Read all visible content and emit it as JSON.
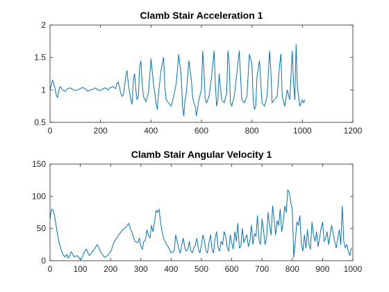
{
  "chart_data": [
    {
      "type": "line",
      "title": "Clamb Stair Acceleration 1",
      "xlabel": "",
      "ylabel": "",
      "xlim": [
        0,
        1200
      ],
      "ylim": [
        0.5,
        2
      ],
      "xticks": [
        0,
        200,
        400,
        600,
        800,
        1000,
        1200
      ],
      "yticks": [
        0.5,
        1,
        1.5,
        2
      ],
      "xtick_labels": [
        "0",
        "200",
        "400",
        "600",
        "800",
        "1000",
        "1200"
      ],
      "ytick_labels": [
        "0.5",
        "1",
        "1.5",
        "2"
      ],
      "grid": false,
      "color": "#0072BD",
      "series": [
        {
          "x": [
            0,
            5,
            10,
            15,
            20,
            25,
            30,
            35,
            40,
            50,
            60,
            70,
            80,
            90,
            100,
            110,
            120,
            130,
            140,
            150,
            160,
            170,
            180,
            190,
            200,
            210,
            220,
            230,
            240,
            250,
            260,
            265,
            270,
            275,
            280,
            285,
            290,
            295,
            300,
            305,
            310,
            320,
            325,
            330,
            335,
            340,
            345,
            350,
            355,
            360,
            365,
            370,
            380,
            390,
            395,
            400,
            410,
            420,
            425,
            430,
            440,
            450,
            455,
            460,
            470,
            480,
            490,
            500,
            510,
            520,
            525,
            530,
            535,
            540,
            550,
            560,
            565,
            570,
            575,
            580,
            590,
            600,
            605,
            610,
            615,
            620,
            630,
            640,
            650,
            655,
            660,
            665,
            670,
            680,
            690,
            700,
            705,
            710,
            715,
            720,
            730,
            740,
            750,
            755,
            760,
            770,
            780,
            790,
            800,
            805,
            810,
            815,
            820,
            830,
            840,
            850,
            860,
            870,
            875,
            880,
            890,
            900,
            910,
            915,
            920,
            930,
            940,
            950,
            960,
            965,
            970,
            975,
            980,
            990,
            1000,
            1005,
            1010
          ],
          "y": [
            1.0,
            1.08,
            1.15,
            1.1,
            1.02,
            0.92,
            0.88,
            1.0,
            1.05,
            1.0,
            0.98,
            1.02,
            1.03,
            1.01,
            0.99,
            1.0,
            1.02,
            1.04,
            1.01,
            0.98,
            1.0,
            1.01,
            1.03,
            1.0,
            0.99,
            1.02,
            1.03,
            1.0,
            1.04,
            1.05,
            1.02,
            1.1,
            1.12,
            1.05,
            0.95,
            0.9,
            0.92,
            1.05,
            1.2,
            1.3,
            1.1,
            0.85,
            0.78,
            1.15,
            1.25,
            1.0,
            0.85,
            0.9,
            1.35,
            1.45,
            1.1,
            0.9,
            0.82,
            0.95,
            1.2,
            1.48,
            1.1,
            0.8,
            0.7,
            0.95,
            1.3,
            1.5,
            1.05,
            0.85,
            0.8,
            0.75,
            0.9,
            1.1,
            1.55,
            1.2,
            0.75,
            0.6,
            0.85,
            0.95,
            1.45,
            1.15,
            0.9,
            0.8,
            0.75,
            0.6,
            0.85,
            1.0,
            1.6,
            1.3,
            0.85,
            0.8,
            0.9,
            1.2,
            1.6,
            1.1,
            0.75,
            0.85,
            1.25,
            0.85,
            0.8,
            0.95,
            1.6,
            1.4,
            0.8,
            0.75,
            0.9,
            1.25,
            1.6,
            1.2,
            0.85,
            0.8,
            0.9,
            1.55,
            1.4,
            0.85,
            0.7,
            0.75,
            1.2,
            1.45,
            0.8,
            0.75,
            0.9,
            1.6,
            1.3,
            0.8,
            0.85,
            0.9,
            1.4,
            1.55,
            0.9,
            0.75,
            1.0,
            0.85,
            1.6,
            1.1,
            0.85,
            1.7,
            1.05,
            0.75,
            0.85,
            0.8,
            0.85
          ]
        }
      ]
    },
    {
      "type": "line",
      "title": "Clamb Stair Angular Velocity 1",
      "xlabel": "",
      "ylabel": "",
      "xlim": [
        0,
        1000
      ],
      "ylim": [
        0,
        150
      ],
      "xticks": [
        0,
        100,
        200,
        300,
        400,
        500,
        600,
        700,
        800,
        900,
        1000
      ],
      "yticks": [
        0,
        50,
        100,
        150
      ],
      "xtick_labels": [
        "0",
        "100",
        "200",
        "300",
        "400",
        "500",
        "600",
        "700",
        "800",
        "900",
        "1000"
      ],
      "ytick_labels": [
        "0",
        "50",
        "100",
        "150"
      ],
      "grid": false,
      "color": "#0072BD",
      "series": [
        {
          "x": [
            0,
            3,
            6,
            10,
            15,
            20,
            25,
            30,
            35,
            40,
            45,
            50,
            55,
            60,
            65,
            70,
            75,
            80,
            90,
            100,
            105,
            110,
            115,
            120,
            125,
            130,
            140,
            150,
            155,
            160,
            165,
            170,
            180,
            190,
            200,
            205,
            210,
            220,
            230,
            240,
            250,
            255,
            260,
            265,
            270,
            280,
            290,
            295,
            300,
            305,
            310,
            315,
            320,
            325,
            330,
            335,
            340,
            345,
            350,
            355,
            360,
            365,
            370,
            375,
            380,
            385,
            390,
            400,
            410,
            415,
            420,
            425,
            430,
            435,
            440,
            445,
            450,
            455,
            460,
            465,
            470,
            475,
            480,
            485,
            490,
            495,
            500,
            505,
            510,
            515,
            520,
            525,
            530,
            535,
            540,
            545,
            550,
            555,
            560,
            565,
            570,
            575,
            580,
            585,
            590,
            595,
            600,
            605,
            610,
            615,
            620,
            625,
            630,
            635,
            640,
            645,
            650,
            655,
            660,
            665,
            670,
            675,
            680,
            685,
            690,
            695,
            700,
            705,
            710,
            715,
            720,
            725,
            730,
            735,
            740,
            745,
            750,
            755,
            760,
            765,
            770,
            775,
            780,
            785,
            790,
            795,
            800,
            805,
            810,
            815,
            820,
            825,
            830,
            835,
            840,
            845,
            850,
            855,
            860,
            865,
            870,
            875,
            880,
            885,
            890,
            895,
            900,
            905,
            910,
            915,
            920,
            925,
            930,
            935,
            940,
            945,
            950,
            955,
            960,
            965,
            970,
            975,
            980,
            985,
            990,
            995
          ],
          "y": [
            65,
            75,
            80,
            78,
            70,
            55,
            40,
            28,
            20,
            12,
            8,
            6,
            10,
            4,
            8,
            14,
            10,
            6,
            8,
            2,
            3,
            10,
            15,
            18,
            12,
            8,
            14,
            20,
            25,
            22,
            16,
            12,
            5,
            8,
            14,
            20,
            28,
            35,
            42,
            48,
            52,
            55,
            58,
            50,
            45,
            30,
            28,
            35,
            22,
            18,
            30,
            32,
            48,
            40,
            35,
            55,
            45,
            60,
            78,
            75,
            80,
            60,
            45,
            35,
            30,
            25,
            22,
            12,
            15,
            40,
            30,
            18,
            12,
            25,
            35,
            20,
            15,
            18,
            30,
            15,
            12,
            20,
            25,
            35,
            18,
            12,
            25,
            40,
            30,
            15,
            12,
            28,
            40,
            18,
            12,
            35,
            45,
            20,
            15,
            30,
            25,
            45,
            38,
            20,
            15,
            40,
            28,
            18,
            45,
            30,
            58,
            20,
            22,
            50,
            28,
            35,
            40,
            22,
            30,
            55,
            25,
            42,
            38,
            70,
            32,
            25,
            65,
            48,
            25,
            35,
            75,
            55,
            40,
            85,
            65,
            40,
            62,
            55,
            80,
            45,
            60,
            85,
            75,
            110,
            105,
            90,
            80,
            5,
            30,
            60,
            55,
            70,
            25,
            15,
            40,
            20,
            48,
            25,
            18,
            60,
            40,
            30,
            45,
            22,
            35,
            50,
            60,
            30,
            35,
            45,
            25,
            40,
            55,
            42,
            30,
            20,
            35,
            48,
            25,
            85,
            30,
            20,
            25,
            15,
            8,
            20
          ]
        }
      ]
    }
  ]
}
